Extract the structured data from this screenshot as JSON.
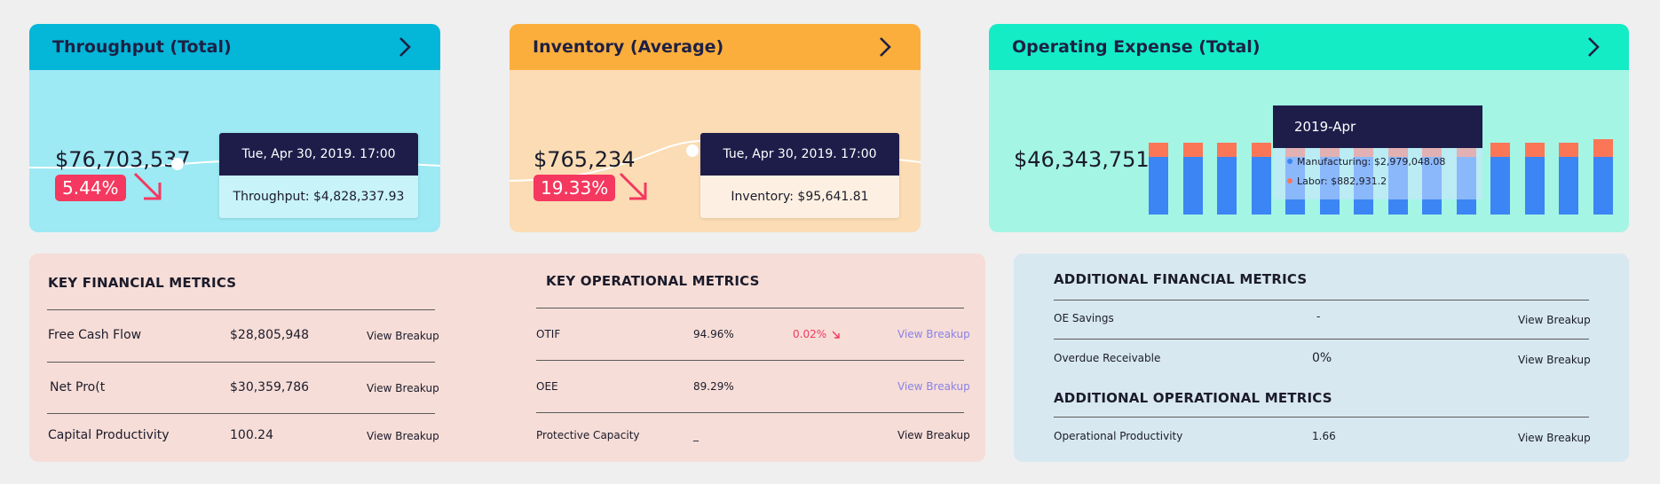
{
  "throughput": {
    "title": "Throughput (Total)",
    "value": "$76,703,537",
    "change": "5.44%",
    "tooltip_date": "Tue, Apr 30, 2019. 17:00",
    "tooltip_value": "Throughput: $4,828,337.93"
  },
  "inventory": {
    "title": "Inventory (Average)",
    "value": "$765,234",
    "change": "19.33%",
    "tooltip_date": "Tue, Apr 30, 2019. 17:00",
    "tooltip_value": "Inventory: $95,641.81"
  },
  "operating_expense": {
    "title": "Operating Expense (Total)",
    "value": "$46,343,751",
    "tooltip_title": "2019-Apr",
    "tooltip_manufacturing": "Manufacturing: $2,979,048.08",
    "tooltip_labor": "Labor: $882,931.2",
    "chart_data": {
      "type": "bar",
      "series": [
        {
          "name": "Manufacturing",
          "values": [
            0.72,
            0.72,
            0.72,
            0.72,
            0.72,
            0.72,
            0.72,
            0.72,
            0.72,
            0.72,
            0.72,
            0.72,
            0.72,
            0.72
          ]
        },
        {
          "name": "Labor",
          "values": [
            0.18,
            0.18,
            0.18,
            0.18,
            0.18,
            0.18,
            0.18,
            0.18,
            0.18,
            0.18,
            0.18,
            0.18,
            0.18,
            0.22
          ]
        }
      ],
      "colors": {
        "Manufacturing": "#3b85f4",
        "Labor": "#fb7657"
      }
    }
  },
  "key_financial": {
    "title": "KEY FINANCIAL METRICS",
    "rows": [
      {
        "name": "Free Cash Flow",
        "value": "$28,805,948",
        "action": "View Breakup"
      },
      {
        "name": "Net Pro(t",
        "value": "$30,359,786",
        "action": "View Breakup"
      },
      {
        "name": "Capital Productivity",
        "value": "100.24",
        "action": "View Breakup"
      }
    ]
  },
  "key_operational": {
    "title": "KEY OPERATIONAL METRICS",
    "rows": [
      {
        "name": "OTIF",
        "value": "94.96%",
        "delta": "0.02%",
        "action": "View Breakup"
      },
      {
        "name": "OEE",
        "value": "89.29%",
        "delta": "",
        "action": "View Breakup"
      },
      {
        "name": "Protective Capacity",
        "value": "_",
        "delta": "",
        "action": "View Breakup"
      }
    ]
  },
  "additional_financial": {
    "title": "ADDITIONAL FINANCIAL METRICS",
    "rows": [
      {
        "name": "OE Savings",
        "value": "-",
        "action": "View Breakup"
      },
      {
        "name": "Overdue Receivable",
        "value": "0%",
        "action": "View Breakup"
      }
    ]
  },
  "additional_operational": {
    "title": "ADDITIONAL OPERATIONAL METRICS",
    "rows": [
      {
        "name": "Operational Productivity",
        "value": "1.66",
        "action": "View Breakup"
      }
    ]
  }
}
